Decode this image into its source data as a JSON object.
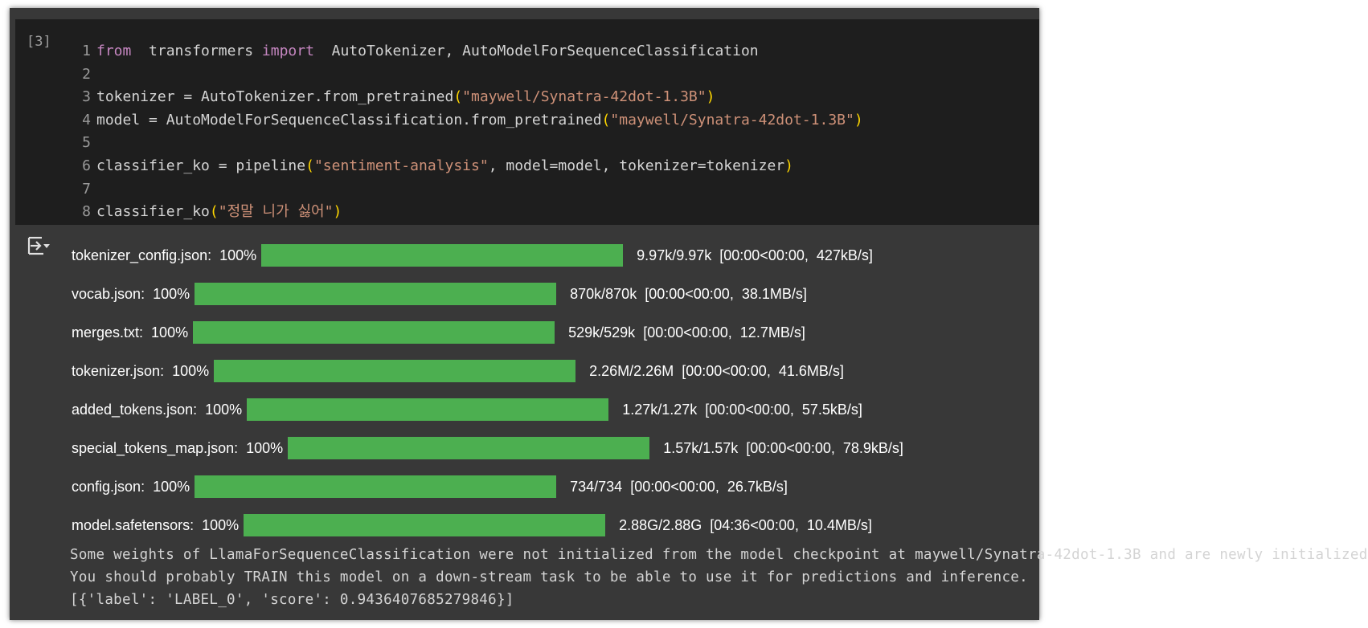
{
  "cell": {
    "execution_count": "[3]",
    "lines": [
      {
        "n": "1",
        "parts": [
          [
            "kw",
            "from"
          ],
          [
            "",
            "  transformers "
          ],
          [
            "kw",
            "import"
          ],
          [
            "",
            "  AutoTokenizer, AutoModelForSequenceClassification"
          ]
        ]
      },
      {
        "n": "2",
        "parts": []
      },
      {
        "n": "3",
        "parts": [
          [
            "",
            "tokenizer = AutoTokenizer.from_pretrained"
          ],
          [
            "par",
            "("
          ],
          [
            "str",
            "\"maywell/Synatra-42dot-1.3B\""
          ],
          [
            "par",
            ")"
          ]
        ]
      },
      {
        "n": "4",
        "parts": [
          [
            "",
            "model = AutoModelForSequenceClassification.from_pretrained"
          ],
          [
            "par",
            "("
          ],
          [
            "str",
            "\"maywell/Synatra-42dot-1.3B\""
          ],
          [
            "par",
            ")"
          ]
        ]
      },
      {
        "n": "5",
        "parts": []
      },
      {
        "n": "6",
        "parts": [
          [
            "",
            "classifier_ko = pipeline"
          ],
          [
            "par",
            "("
          ],
          [
            "str",
            "\"sentiment-analysis\""
          ],
          [
            "",
            ", model=model, tokenizer=tokenizer"
          ],
          [
            "par",
            ")"
          ]
        ]
      },
      {
        "n": "7",
        "parts": []
      },
      {
        "n": "8",
        "parts": [
          [
            "",
            "classifier_ko"
          ],
          [
            "par",
            "("
          ],
          [
            "str",
            "\"정말 니가 싫어\""
          ],
          [
            "par",
            ")"
          ]
        ]
      }
    ]
  },
  "output": {
    "icon": "output-toggle-icon",
    "progress": [
      {
        "file": "tokenizer_config.json",
        "percent": "100%",
        "fill": 1.0,
        "stats": "9.97k/9.97k",
        "timing": "[00:00<00:00,  427kB/s]"
      },
      {
        "file": "vocab.json",
        "percent": "100%",
        "fill": 1.0,
        "stats": "870k/870k",
        "timing": "[00:00<00:00,  38.1MB/s]"
      },
      {
        "file": "merges.txt",
        "percent": "100%",
        "fill": 1.0,
        "stats": "529k/529k",
        "timing": "[00:00<00:00,  12.7MB/s]"
      },
      {
        "file": "tokenizer.json",
        "percent": "100%",
        "fill": 1.0,
        "stats": "2.26M/2.26M",
        "timing": "[00:00<00:00,  41.6MB/s]"
      },
      {
        "file": "added_tokens.json",
        "percent": "100%",
        "fill": 1.0,
        "stats": "1.27k/1.27k",
        "timing": "[00:00<00:00,  57.5kB/s]"
      },
      {
        "file": "special_tokens_map.json",
        "percent": "100%",
        "fill": 1.0,
        "stats": "1.57k/1.57k",
        "timing": "[00:00<00:00,  78.9kB/s]"
      },
      {
        "file": "config.json",
        "percent": "100%",
        "fill": 1.0,
        "stats": "734/734",
        "timing": "[00:00<00:00,  26.7kB/s]"
      },
      {
        "file": "model.safetensors",
        "percent": "100%",
        "fill": 1.0,
        "stats": "2.88G/2.88G",
        "timing": "[04:36<00:00,  10.4MB/s]"
      }
    ],
    "stderr_lines": [
      "Some weights of LlamaForSequenceClassification were not initialized from the model checkpoint at maywell/Synatra-42dot-1.3B and are newly initialized",
      "You should probably TRAIN this model on a down-stream task to be able to use it for predictions and inference."
    ],
    "result": "[{'label': 'LABEL_0', 'score': 0.9436407685279846}]"
  },
  "colors": {
    "progress_fill": "#4caf50",
    "string": "#ce9178",
    "keyword": "#c586c0",
    "paren": "#ffd700"
  }
}
